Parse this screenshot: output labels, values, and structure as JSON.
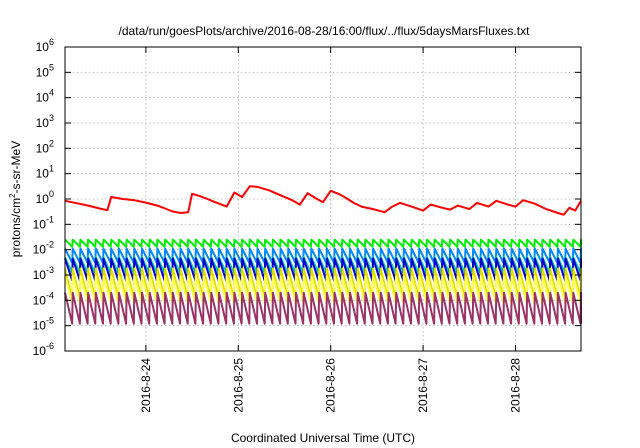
{
  "chart_data": {
    "type": "line",
    "title": "/data/run/goesPlots/archive/2016-08-28/16:00/flux/../flux/5daysMarsFluxes.txt",
    "xlabel": "Coordinated Universal Time (UTC)",
    "ylabel_parts": [
      "protons/cm",
      "2",
      "-s-sr-MeV"
    ],
    "y_scale": "log",
    "ylim_exponents": [
      -6,
      6
    ],
    "y_ticks": [
      {
        "base": "10",
        "exp": "-6"
      },
      {
        "base": "10",
        "exp": "-5"
      },
      {
        "base": "10",
        "exp": "-4"
      },
      {
        "base": "10",
        "exp": "-3"
      },
      {
        "base": "10",
        "exp": "-2"
      },
      {
        "base": "10",
        "exp": "-1"
      },
      {
        "base": "10",
        "exp": "0"
      },
      {
        "base": "10",
        "exp": "1"
      },
      {
        "base": "10",
        "exp": "2"
      },
      {
        "base": "10",
        "exp": "3"
      },
      {
        "base": "10",
        "exp": "4"
      },
      {
        "base": "10",
        "exp": "5"
      },
      {
        "base": "10",
        "exp": "6"
      }
    ],
    "xlim": [
      "2016-08-23 03:00",
      "2016-08-28 17:00"
    ],
    "x_ticks": [
      "2016-8-24",
      "2016-8-25",
      "2016-8-26",
      "2016-8-27",
      "2016-8-28"
    ],
    "grid": true,
    "series": [
      {
        "color": "#ff0000",
        "values": [
          [
            "2016-08-23 03:00",
            0.85
          ],
          [
            "2016-08-23 06:00",
            0.68
          ],
          [
            "2016-08-23 09:00",
            0.55
          ],
          [
            "2016-08-23 12:00",
            0.42
          ],
          [
            "2016-08-23 14:00",
            0.36
          ],
          [
            "2016-08-23 15:00",
            1.2
          ],
          [
            "2016-08-23 18:00",
            1.0
          ],
          [
            "2016-08-23 21:00",
            0.9
          ],
          [
            "2016-08-24 00:00",
            0.72
          ],
          [
            "2016-08-24 03:00",
            0.55
          ],
          [
            "2016-08-24 05:00",
            0.42
          ],
          [
            "2016-08-24 07:00",
            0.32
          ],
          [
            "2016-08-24 09:00",
            0.28
          ],
          [
            "2016-08-24 11:00",
            0.3
          ],
          [
            "2016-08-24 12:00",
            1.6
          ],
          [
            "2016-08-24 14:00",
            1.3
          ],
          [
            "2016-08-24 16:00",
            1.0
          ],
          [
            "2016-08-24 18:00",
            0.75
          ],
          [
            "2016-08-24 21:00",
            0.5
          ],
          [
            "2016-08-24 23:00",
            1.8
          ],
          [
            "2016-08-25 01:00",
            1.2
          ],
          [
            "2016-08-25 03:00",
            3.2
          ],
          [
            "2016-08-25 05:00",
            3.0
          ],
          [
            "2016-08-25 08:00",
            2.2
          ],
          [
            "2016-08-25 11:00",
            1.4
          ],
          [
            "2016-08-25 14:00",
            0.9
          ],
          [
            "2016-08-25 16:00",
            0.6
          ],
          [
            "2016-08-25 18:00",
            1.7
          ],
          [
            "2016-08-25 20:00",
            1.1
          ],
          [
            "2016-08-25 22:00",
            0.75
          ],
          [
            "2016-08-26 00:00",
            2.1
          ],
          [
            "2016-08-26 02:00",
            1.6
          ],
          [
            "2016-08-26 04:00",
            1.1
          ],
          [
            "2016-08-26 06:00",
            0.7
          ],
          [
            "2016-08-26 08:00",
            0.5
          ],
          [
            "2016-08-26 11:00",
            0.4
          ],
          [
            "2016-08-26 14:00",
            0.3
          ],
          [
            "2016-08-26 16:00",
            0.5
          ],
          [
            "2016-08-26 18:00",
            0.7
          ],
          [
            "2016-08-26 21:00",
            0.5
          ],
          [
            "2016-08-27 00:00",
            0.35
          ],
          [
            "2016-08-27 02:00",
            0.6
          ],
          [
            "2016-08-27 05:00",
            0.45
          ],
          [
            "2016-08-27 07:00",
            0.38
          ],
          [
            "2016-08-27 09:00",
            0.55
          ],
          [
            "2016-08-27 12:00",
            0.4
          ],
          [
            "2016-08-27 14:00",
            0.7
          ],
          [
            "2016-08-27 17:00",
            0.5
          ],
          [
            "2016-08-27 19:00",
            0.85
          ],
          [
            "2016-08-27 22:00",
            0.6
          ],
          [
            "2016-08-28 00:00",
            0.5
          ],
          [
            "2016-08-28 02:00",
            0.9
          ],
          [
            "2016-08-28 05:00",
            0.65
          ],
          [
            "2016-08-28 08:00",
            0.4
          ],
          [
            "2016-08-28 11:00",
            0.28
          ],
          [
            "2016-08-28 12:30",
            0.24
          ],
          [
            "2016-08-28 14:00",
            0.45
          ],
          [
            "2016-08-28 15:30",
            0.35
          ],
          [
            "2016-08-28 17:00",
            0.85
          ]
        ]
      },
      {
        "color": "#00ee00",
        "peak": 0.025,
        "trough": 0.013
      },
      {
        "color": "#0088ff",
        "peak": 0.011,
        "trough": 0.003
      },
      {
        "color": "#00ccbb",
        "peak": 0.005,
        "trough": 0.0012
      },
      {
        "color": "#0000cc",
        "peak": 0.0045,
        "trough": 0.0006
      },
      {
        "color": "#dddd00",
        "peak": 0.0018,
        "trough": 0.00012
      },
      {
        "color": "#ffff55",
        "peak": 0.0009,
        "trough": 8e-05
      },
      {
        "color": "#993366",
        "peak": 0.0002,
        "trough": 1.2e-05
      }
    ]
  }
}
